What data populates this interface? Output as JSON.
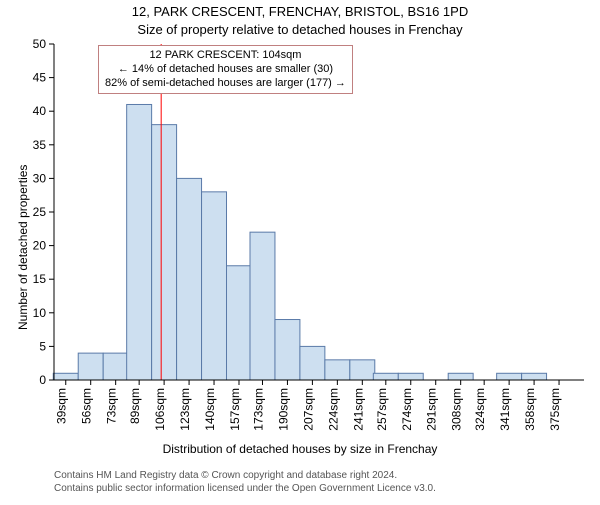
{
  "title": "12, PARK CRESCENT, FRENCHAY, BRISTOL, BS16 1PD",
  "subtitle": "Size of property relative to detached houses in Frenchay",
  "ylabel": "Number of detached properties",
  "xlabel": "Distribution of detached houses by size in Frenchay",
  "footer_line1": "Contains HM Land Registry data © Crown copyright and database right 2024.",
  "footer_line2": "Contains public sector information licensed under the Open Government Licence v3.0.",
  "distribution_chart": {
    "type": "bar",
    "x_tick_labels": [
      "39sqm",
      "56sqm",
      "73sqm",
      "89sqm",
      "106sqm",
      "123sqm",
      "140sqm",
      "157sqm",
      "173sqm",
      "190sqm",
      "207sqm",
      "224sqm",
      "241sqm",
      "257sqm",
      "274sqm",
      "291sqm",
      "308sqm",
      "324sqm",
      "341sqm",
      "358sqm",
      "375sqm"
    ],
    "x_tick_positions": [
      39,
      56,
      73,
      89,
      106,
      123,
      140,
      157,
      173,
      190,
      207,
      224,
      241,
      257,
      274,
      291,
      308,
      324,
      341,
      358,
      375
    ],
    "bars": [
      {
        "x": 39,
        "y": 1
      },
      {
        "x": 56,
        "y": 4
      },
      {
        "x": 73,
        "y": 4
      },
      {
        "x": 89,
        "y": 41
      },
      {
        "x": 106,
        "y": 38
      },
      {
        "x": 123,
        "y": 30
      },
      {
        "x": 140,
        "y": 28
      },
      {
        "x": 157,
        "y": 17
      },
      {
        "x": 173,
        "y": 22
      },
      {
        "x": 190,
        "y": 9
      },
      {
        "x": 207,
        "y": 5
      },
      {
        "x": 224,
        "y": 3
      },
      {
        "x": 241,
        "y": 3
      },
      {
        "x": 257,
        "y": 1
      },
      {
        "x": 274,
        "y": 1
      },
      {
        "x": 291,
        "y": 0
      },
      {
        "x": 308,
        "y": 1
      },
      {
        "x": 324,
        "y": 0
      },
      {
        "x": 341,
        "y": 1
      },
      {
        "x": 358,
        "y": 1
      },
      {
        "x": 375,
        "y": 0
      }
    ],
    "bar_color": "#cddff0",
    "bar_border_color": "#5a7aa8",
    "xlim": [
      31,
      392
    ],
    "ylim": [
      0,
      50
    ],
    "y_ticks": [
      0,
      5,
      10,
      15,
      20,
      25,
      30,
      35,
      40,
      45,
      50
    ],
    "axis_color": "#000000",
    "grid_on": false,
    "bar_width_units": 17,
    "marker_line": {
      "x": 104,
      "color": "#ff0000",
      "width": 1
    },
    "annotation_box": {
      "line1": "12 PARK CRESCENT: 104sqm",
      "line2": "← 14% of detached houses are smaller (30)",
      "line3": "82% of semi-detached houses are larger (177) →",
      "border_color": "#c08080",
      "background_color": "#ffffff",
      "fontsize": 11
    },
    "tick_fontsize": 12,
    "xtick_rotation_deg": -90
  }
}
